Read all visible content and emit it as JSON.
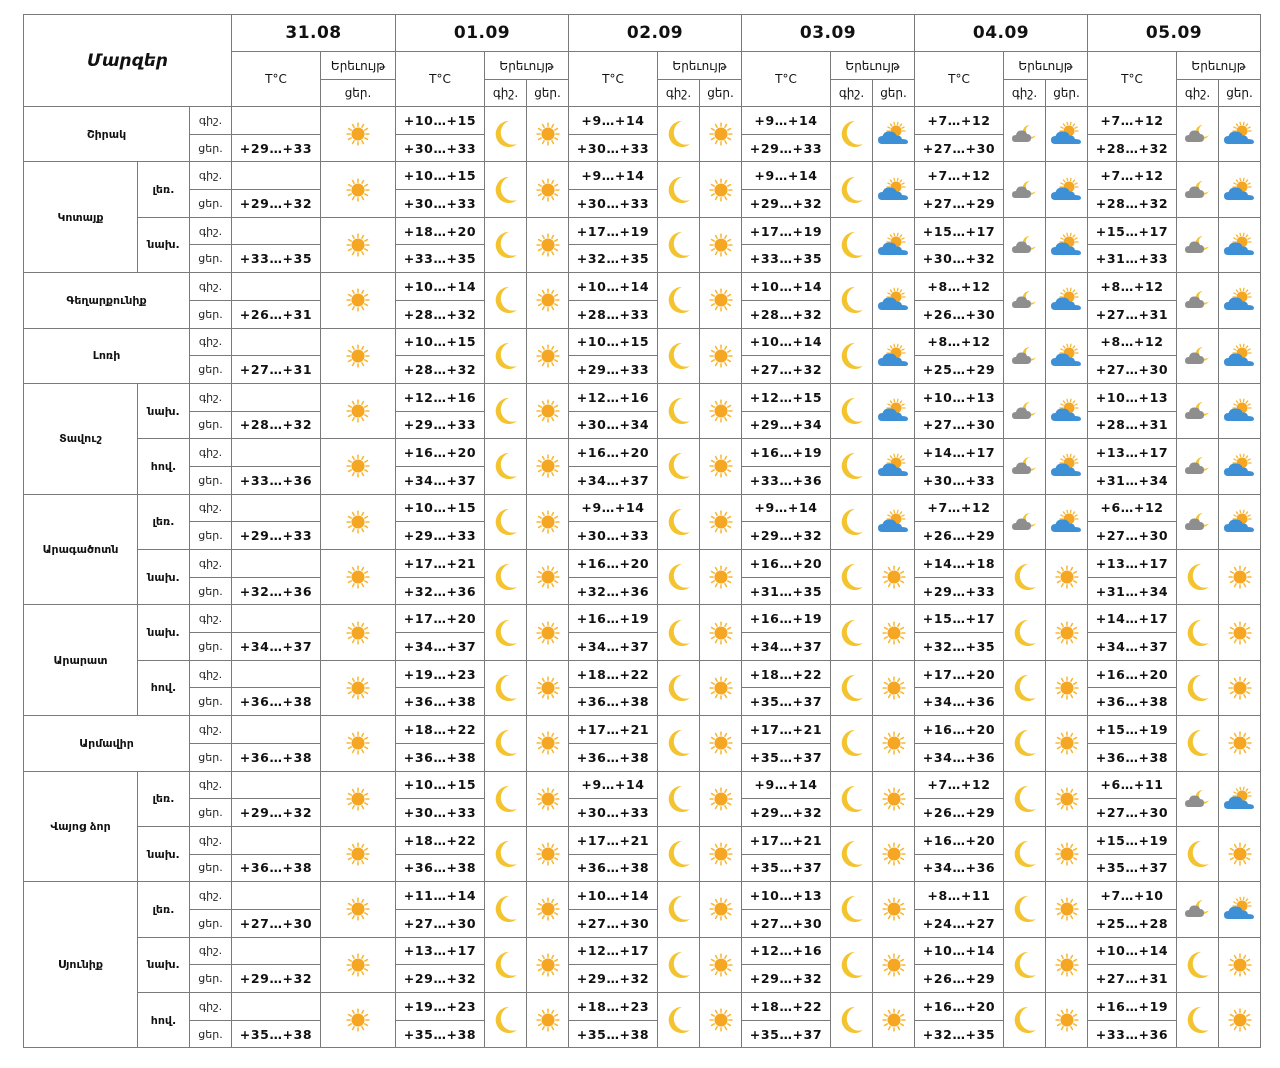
{
  "header": {
    "region_title": "Մարզեր",
    "temp_label": "T°C",
    "phenomenon_label": "Երեւույթ",
    "night_label": "գիշ.",
    "day_label": "ցեր.",
    "dates": [
      "31.08",
      "01.09",
      "02.09",
      "03.09",
      "04.09",
      "05.09"
    ]
  },
  "rows": [
    {
      "region": "Շիրակ",
      "zone": "",
      "span": 2,
      "zspan": 0,
      "tod": "գիշ.",
      "temps": [
        "",
        "+10…+15",
        "+9…+14",
        "+9…+14",
        "+7…+12",
        "+7…+12"
      ],
      "icons": [
        "sun",
        "moon",
        "moon",
        "moon",
        "cloud-night",
        "cloud-night"
      ]
    },
    {
      "tod": "ցեր.",
      "temps": [
        "+29…+33",
        "+30…+33",
        "+30…+33",
        "+29…+33",
        "+27…+30",
        "+28…+32"
      ],
      "icons": [
        "",
        "sun",
        "sun",
        "partly-cloudy",
        "partly-cloudy",
        "partly-cloudy"
      ]
    },
    {
      "region": "Կոտայք",
      "zone": "լեռ.",
      "span": 4,
      "zspan": 2,
      "tod": "գիշ.",
      "temps": [
        "",
        "+10…+15",
        "+9…+14",
        "+9…+14",
        "+7…+12",
        "+7…+12"
      ],
      "icons": [
        "sun",
        "moon",
        "moon",
        "moon",
        "cloud-night",
        "cloud-night"
      ]
    },
    {
      "tod": "ցեր.",
      "temps": [
        "+29…+32",
        "+30…+33",
        "+30…+33",
        "+29…+32",
        "+27…+29",
        "+28…+32"
      ],
      "icons": [
        "",
        "sun",
        "sun",
        "partly-cloudy",
        "partly-cloudy",
        "partly-cloudy"
      ]
    },
    {
      "zone": "նախ.",
      "zspan": 2,
      "tod": "գիշ.",
      "temps": [
        "",
        "+18…+20",
        "+17…+19",
        "+17…+19",
        "+15…+17",
        "+15…+17"
      ],
      "icons": [
        "sun",
        "moon",
        "moon",
        "moon",
        "cloud-night",
        "cloud-night"
      ]
    },
    {
      "tod": "ցեր.",
      "temps": [
        "+33…+35",
        "+33…+35",
        "+32…+35",
        "+33…+35",
        "+30…+32",
        "+31…+33"
      ],
      "icons": [
        "",
        "sun",
        "sun",
        "partly-cloudy",
        "partly-cloudy",
        "partly-cloudy"
      ]
    },
    {
      "region": "Գեղարքունիք",
      "zone": "",
      "span": 2,
      "zspan": 0,
      "tod": "գիշ.",
      "temps": [
        "",
        "+10…+14",
        "+10…+14",
        "+10…+14",
        "+8…+12",
        "+8…+12"
      ],
      "icons": [
        "sun",
        "moon",
        "moon",
        "moon",
        "cloud-night",
        "cloud-night"
      ]
    },
    {
      "tod": "ցեր.",
      "temps": [
        "+26…+31",
        "+28…+32",
        "+28…+33",
        "+28…+32",
        "+26…+30",
        "+27…+31"
      ],
      "icons": [
        "",
        "sun",
        "sun",
        "partly-cloudy",
        "partly-cloudy",
        "partly-cloudy"
      ]
    },
    {
      "region": "Լոռի",
      "zone": "",
      "span": 2,
      "zspan": 0,
      "tod": "գիշ.",
      "temps": [
        "",
        "+10…+15",
        "+10…+15",
        "+10…+14",
        "+8…+12",
        "+8…+12"
      ],
      "icons": [
        "sun",
        "moon",
        "moon",
        "moon",
        "cloud-night",
        "cloud-night"
      ]
    },
    {
      "tod": "ցեր.",
      "temps": [
        "+27…+31",
        "+28…+32",
        "+29…+33",
        "+27…+32",
        "+25…+29",
        "+27…+30"
      ],
      "icons": [
        "",
        "sun",
        "sun",
        "partly-cloudy",
        "partly-cloudy",
        "partly-cloudy"
      ]
    },
    {
      "region": "Տավուշ",
      "zone": "նախ.",
      "span": 4,
      "zspan": 2,
      "tod": "գիշ.",
      "temps": [
        "",
        "+12…+16",
        "+12…+16",
        "+12…+15",
        "+10…+13",
        "+10…+13"
      ],
      "icons": [
        "sun",
        "moon",
        "moon",
        "moon",
        "cloud-night",
        "cloud-night"
      ]
    },
    {
      "tod": "ցեր.",
      "temps": [
        "+28…+32",
        "+29…+33",
        "+30…+34",
        "+29…+34",
        "+27…+30",
        "+28…+31"
      ],
      "icons": [
        "",
        "sun",
        "sun",
        "partly-cloudy",
        "partly-cloudy",
        "partly-cloudy"
      ]
    },
    {
      "zone": "հով.",
      "zspan": 2,
      "tod": "գիշ.",
      "temps": [
        "",
        "+16…+20",
        "+16…+20",
        "+16…+19",
        "+14…+17",
        "+13…+17"
      ],
      "icons": [
        "sun",
        "moon",
        "moon",
        "moon",
        "cloud-night",
        "cloud-night"
      ]
    },
    {
      "tod": "ցեր.",
      "temps": [
        "+33…+36",
        "+34…+37",
        "+34…+37",
        "+33…+36",
        "+30…+33",
        "+31…+34"
      ],
      "icons": [
        "",
        "sun",
        "sun",
        "partly-cloudy",
        "partly-cloudy",
        "partly-cloudy"
      ]
    },
    {
      "region": "Արագածոտն",
      "zone": "լեռ.",
      "span": 4,
      "zspan": 2,
      "tod": "գիշ.",
      "temps": [
        "",
        "+10…+15",
        "+9…+14",
        "+9…+14",
        "+7…+12",
        "+6…+12"
      ],
      "icons": [
        "sun",
        "moon",
        "moon",
        "moon",
        "cloud-night",
        "cloud-night"
      ]
    },
    {
      "tod": "ցեր.",
      "temps": [
        "+29…+33",
        "+29…+33",
        "+30…+33",
        "+29…+32",
        "+26…+29",
        "+27…+30"
      ],
      "icons": [
        "",
        "sun",
        "sun",
        "partly-cloudy",
        "partly-cloudy",
        "partly-cloudy"
      ]
    },
    {
      "zone": "նախ.",
      "zspan": 2,
      "tod": "գիշ.",
      "temps": [
        "",
        "+17…+21",
        "+16…+20",
        "+16…+20",
        "+14…+18",
        "+13…+17"
      ],
      "icons": [
        "sun",
        "moon",
        "moon",
        "moon",
        "moon",
        "moon"
      ]
    },
    {
      "tod": "ցեր.",
      "temps": [
        "+32…+36",
        "+32…+36",
        "+32…+36",
        "+31…+35",
        "+29…+33",
        "+31…+34"
      ],
      "icons": [
        "",
        "sun",
        "sun",
        "sun",
        "sun",
        "sun"
      ]
    },
    {
      "region": "Արարատ",
      "zone": "նախ.",
      "span": 4,
      "zspan": 2,
      "tod": "գիշ.",
      "temps": [
        "",
        "+17…+20",
        "+16…+19",
        "+16…+19",
        "+15…+17",
        "+14…+17"
      ],
      "icons": [
        "sun",
        "moon",
        "moon",
        "moon",
        "moon",
        "moon"
      ]
    },
    {
      "tod": "ցեր.",
      "temps": [
        "+34…+37",
        "+34…+37",
        "+34…+37",
        "+34…+37",
        "+32…+35",
        "+34…+37"
      ],
      "icons": [
        "",
        "sun",
        "sun",
        "sun",
        "sun",
        "sun"
      ]
    },
    {
      "zone": "հով.",
      "zspan": 2,
      "tod": "գիշ.",
      "temps": [
        "",
        "+19…+23",
        "+18…+22",
        "+18…+22",
        "+17…+20",
        "+16…+20"
      ],
      "icons": [
        "sun",
        "moon",
        "moon",
        "moon",
        "moon",
        "moon"
      ]
    },
    {
      "tod": "ցեր.",
      "temps": [
        "+36…+38",
        "+36…+38",
        "+36…+38",
        "+35…+37",
        "+34…+36",
        "+36…+38"
      ],
      "icons": [
        "",
        "sun",
        "sun",
        "sun",
        "sun",
        "sun"
      ]
    },
    {
      "region": "Արմավիր",
      "zone": "",
      "span": 2,
      "zspan": 0,
      "tod": "գիշ.",
      "temps": [
        "",
        "+18…+22",
        "+17…+21",
        "+17…+21",
        "+16…+20",
        "+15…+19"
      ],
      "icons": [
        "sun",
        "moon",
        "moon",
        "moon",
        "moon",
        "moon"
      ]
    },
    {
      "tod": "ցեր.",
      "temps": [
        "+36…+38",
        "+36…+38",
        "+36…+38",
        "+35…+37",
        "+34…+36",
        "+36…+38"
      ],
      "icons": [
        "",
        "sun",
        "sun",
        "sun",
        "sun",
        "sun"
      ]
    },
    {
      "region": "Վայոց ձոր",
      "zone": "լեռ.",
      "span": 4,
      "zspan": 2,
      "tod": "գիշ.",
      "temps": [
        "",
        "+10…+15",
        "+9…+14",
        "+9…+14",
        "+7…+12",
        "+6…+11"
      ],
      "icons": [
        "sun",
        "moon",
        "moon",
        "moon",
        "moon",
        "cloud-night"
      ]
    },
    {
      "tod": "ցեր.",
      "temps": [
        "+29…+32",
        "+30…+33",
        "+30…+33",
        "+29…+32",
        "+26…+29",
        "+27…+30"
      ],
      "icons": [
        "",
        "sun",
        "sun",
        "sun",
        "sun",
        "partly-cloudy"
      ]
    },
    {
      "zone": "նախ.",
      "zspan": 2,
      "tod": "գիշ.",
      "temps": [
        "",
        "+18…+22",
        "+17…+21",
        "+17…+21",
        "+16…+20",
        "+15…+19"
      ],
      "icons": [
        "sun",
        "moon",
        "moon",
        "moon",
        "moon",
        "moon"
      ]
    },
    {
      "tod": "ցեր.",
      "temps": [
        "+36…+38",
        "+36…+38",
        "+36…+38",
        "+35…+37",
        "+34…+36",
        "+35…+37"
      ],
      "icons": [
        "",
        "sun",
        "sun",
        "sun",
        "sun",
        "sun"
      ]
    },
    {
      "region": "Սյունիք",
      "zone": "լեռ.",
      "span": 6,
      "zspan": 2,
      "tod": "գիշ.",
      "temps": [
        "",
        "+11…+14",
        "+10…+14",
        "+10…+13",
        "+8…+11",
        "+7…+10"
      ],
      "icons": [
        "sun",
        "moon",
        "moon",
        "moon",
        "moon",
        "cloud-night"
      ]
    },
    {
      "tod": "ցեր.",
      "temps": [
        "+27…+30",
        "+27…+30",
        "+27…+30",
        "+27…+30",
        "+24…+27",
        "+25…+28"
      ],
      "icons": [
        "",
        "sun",
        "sun",
        "sun",
        "sun",
        "partly-cloudy"
      ]
    },
    {
      "zone": "նախ.",
      "zspan": 2,
      "tod": "գիշ.",
      "temps": [
        "",
        "+13…+17",
        "+12…+17",
        "+12…+16",
        "+10…+14",
        "+10…+14"
      ],
      "icons": [
        "sun",
        "moon",
        "moon",
        "moon",
        "moon",
        "moon"
      ]
    },
    {
      "tod": "ցեր.",
      "temps": [
        "+29…+32",
        "+29…+32",
        "+29…+32",
        "+29…+32",
        "+26…+29",
        "+27…+31"
      ],
      "icons": [
        "",
        "sun",
        "sun",
        "sun",
        "sun",
        "sun"
      ]
    },
    {
      "zone": "հով.",
      "zspan": 2,
      "tod": "գիշ.",
      "temps": [
        "",
        "+19…+23",
        "+18…+23",
        "+18…+22",
        "+16…+20",
        "+16…+19"
      ],
      "icons": [
        "sun",
        "moon",
        "moon",
        "moon",
        "moon",
        "moon"
      ]
    },
    {
      "tod": "ցեր.",
      "temps": [
        "+35…+38",
        "+35…+38",
        "+35…+38",
        "+35…+37",
        "+32…+35",
        "+33…+36"
      ],
      "icons": [
        "",
        "sun",
        "sun",
        "sun",
        "sun",
        "sun"
      ]
    }
  ],
  "colors": {
    "border": "#7a7a7a",
    "sun": "#f5a623",
    "sun_ray": "#f7b733",
    "moon": "#f4c430",
    "cloud_grey": "#8e8e8e",
    "cloud_blue": "#3d8fd6"
  }
}
